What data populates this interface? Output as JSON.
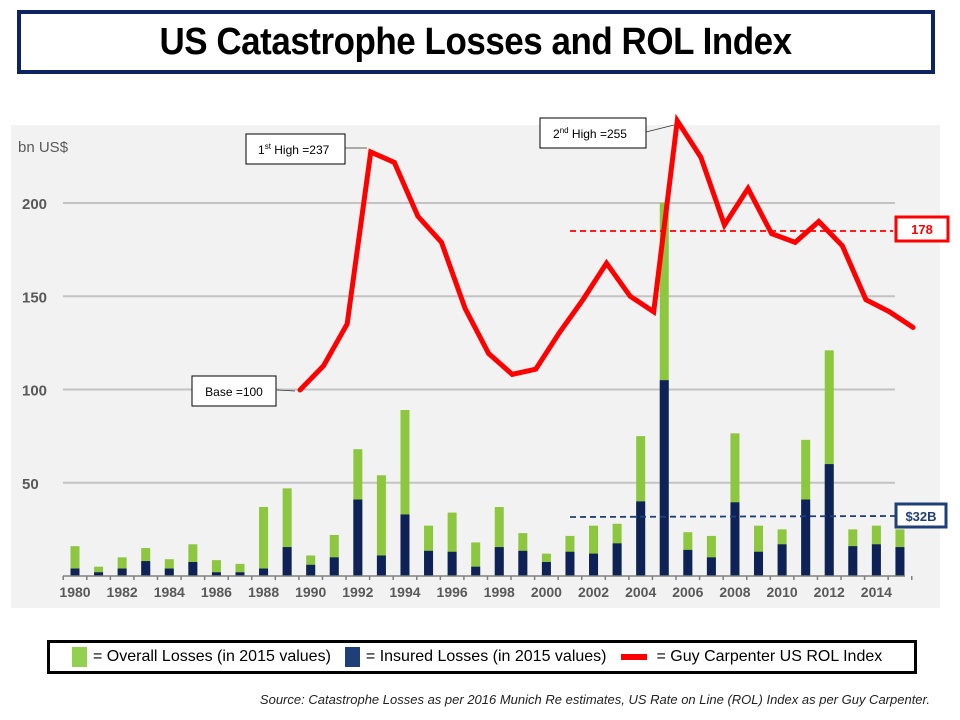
{
  "title": "US Catastrophe Losses and ROL Index",
  "chart_data": {
    "type": "bar",
    "title": "US Catastrophe Losses and ROL Index",
    "ylabel": "bn US$",
    "xlabel": "",
    "ylim": [
      0,
      240
    ],
    "yticks": [
      50,
      100,
      150,
      200
    ],
    "grid": true,
    "categories": [
      1980,
      1981,
      1982,
      1983,
      1984,
      1985,
      1986,
      1987,
      1988,
      1989,
      1990,
      1991,
      1992,
      1993,
      1994,
      1995,
      1996,
      1997,
      1998,
      1999,
      2000,
      2001,
      2002,
      2003,
      2004,
      2005,
      2006,
      2007,
      2008,
      2009,
      2010,
      2011,
      2012,
      2013,
      2014,
      2015
    ],
    "xtick_labels": [
      "1980",
      "1982",
      "1984",
      "1986",
      "1988",
      "1990",
      "1992",
      "1994",
      "1996",
      "1998",
      "2000",
      "2002",
      "2004",
      "2006",
      "2008",
      "2010",
      "2012",
      "2014"
    ],
    "series": [
      {
        "name": "Overall Losses (in 2015 values)",
        "type": "bar",
        "color": "#8dc63f",
        "values": [
          16,
          5,
          10,
          15,
          9,
          17,
          8.5,
          6.5,
          37,
          47,
          11,
          22,
          68,
          54,
          89,
          27,
          34,
          18,
          37,
          23,
          12,
          21.5,
          27,
          28,
          75,
          200,
          23.5,
          21.5,
          76.5,
          27,
          25,
          73,
          121,
          25,
          27,
          25
        ]
      },
      {
        "name": "Insured Losses (in 2015 values)",
        "type": "bar",
        "color": "#0f2257",
        "values": [
          4,
          2,
          4,
          8,
          4,
          7.5,
          2,
          2,
          4,
          15.5,
          6,
          10,
          41,
          11,
          33,
          13.5,
          13,
          5,
          15.5,
          13.5,
          7.5,
          13,
          12,
          17.5,
          40,
          105,
          14,
          10,
          39.5,
          13,
          17,
          41,
          60,
          16,
          17,
          15.5
        ]
      },
      {
        "name": "Guy Carpenter US ROL Index",
        "type": "line",
        "color": "#ff0000",
        "x": [
          1989,
          1990,
          1991,
          1992,
          1993,
          1994,
          1995,
          1996,
          1997,
          1998,
          1999,
          2000,
          2001,
          2002,
          2003,
          2004,
          2005,
          2006,
          2007,
          2008,
          2009,
          2010,
          2011,
          2012,
          2013,
          2014,
          2015
        ],
        "values": [
          100,
          114,
          138,
          237,
          231,
          200,
          185,
          147,
          121,
          109,
          112,
          133,
          152,
          173,
          154,
          145,
          255,
          234,
          195,
          216,
          190,
          185,
          197,
          183,
          152,
          145,
          136
        ]
      }
    ],
    "annotations": [
      {
        "text": "Base =100",
        "target": "ROL 1989"
      },
      {
        "text_prefix": "1",
        "sup": "st",
        "text": " High =237",
        "target": "ROL 1992"
      },
      {
        "text_prefix": "2",
        "sup": "nd",
        "text": " High =255",
        "target": "ROL 2005"
      },
      {
        "text": "178",
        "type": "reference-line",
        "series": "ROL",
        "value": 178,
        "from": 2001,
        "to": 2015,
        "color": "#ff0000"
      },
      {
        "text": "$32B",
        "type": "reference-line",
        "series": "Insured",
        "value": 32,
        "from": 2001,
        "to": 2015,
        "color": "#1f3f78"
      }
    ],
    "legend": "bottom"
  },
  "legend": {
    "overall": "= Overall Losses (in 2015 values)",
    "insured": "= Insured Losses (in 2015 values)",
    "rol": "= Guy Carpenter US ROL Index"
  },
  "source": "Source:  Catastrophe Losses as per 2016 Munich Re estimates, US Rate on Line (ROL) Index as per Guy Carpenter."
}
